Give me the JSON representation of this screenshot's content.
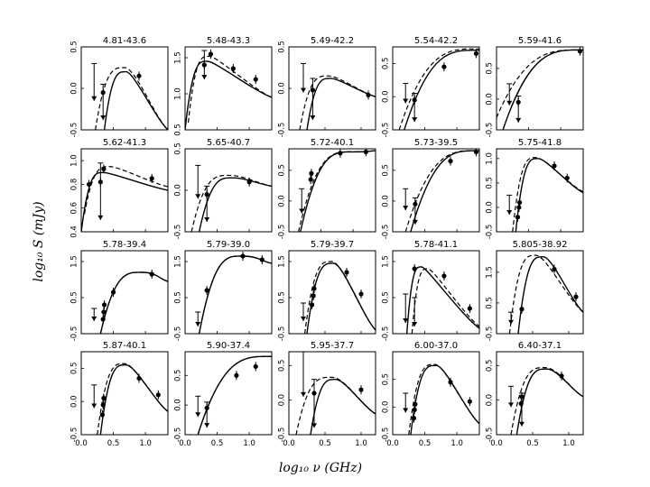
{
  "figure": {
    "xlabel": "log₁₀ ν (GHz)",
    "ylabel": "log₁₀ S (mJy)",
    "x_ticks": [
      "0.0",
      "0.5",
      "1.0"
    ]
  },
  "chart_data": [
    {
      "title": "4.81-43.6",
      "type": "line",
      "ylim": [
        -0.5,
        0.5
      ],
      "yticks": [
        "-0.5",
        "0.0",
        "0.5"
      ],
      "xlim": [
        0,
        1.35
      ],
      "solid": {
        "x0": 0.36,
        "y0": -0.5,
        "xp": 0.7,
        "yp": 0.2,
        "x1": 1.35,
        "y1": -0.5
      },
      "dashed": {
        "x0": 0.22,
        "y0": -0.5,
        "xp": 0.68,
        "yp": 0.25,
        "x1": 1.35,
        "y1": -0.5
      },
      "points": [
        [
          0.34,
          -0.05
        ],
        [
          0.9,
          0.15
        ]
      ],
      "limits": [
        [
          0.2,
          0.3,
          -0.15
        ],
        [
          0.34,
          0.05,
          -0.38
        ]
      ]
    },
    {
      "title": "5.48-43.3",
      "type": "line",
      "ylim": [
        0.5,
        1.65
      ],
      "yticks": [
        "0.5",
        "1.0",
        "1.5"
      ],
      "xlim": [
        0,
        1.35
      ],
      "solid": {
        "x0": 0.0,
        "y0": 0.5,
        "xp": 0.35,
        "yp": 1.45,
        "x1": 1.35,
        "y1": 0.95
      },
      "dashed": {
        "x0": 0.05,
        "y0": 0.6,
        "xp": 0.38,
        "yp": 1.52,
        "x1": 1.35,
        "y1": 0.95
      },
      "points": [
        [
          0.3,
          1.4
        ],
        [
          0.4,
          1.55
        ],
        [
          0.75,
          1.35
        ],
        [
          1.1,
          1.2
        ]
      ],
      "limits": [
        [
          0.3,
          1.6,
          1.2
        ]
      ]
    },
    {
      "title": "5.49-42.2",
      "type": "line",
      "ylim": [
        -0.5,
        0.5
      ],
      "yticks": [
        "-0.5",
        "0.0",
        "0.5"
      ],
      "xlim": [
        0,
        1.2
      ],
      "solid": {
        "x0": 0.25,
        "y0": -0.5,
        "xp": 0.58,
        "yp": 0.12,
        "x1": 1.2,
        "y1": -0.1
      },
      "dashed": {
        "x0": 0.15,
        "y0": -0.5,
        "xp": 0.55,
        "yp": 0.15,
        "x1": 1.2,
        "y1": -0.1
      },
      "points": [
        [
          0.33,
          -0.02
        ],
        [
          1.1,
          -0.08
        ]
      ],
      "limits": [
        [
          0.2,
          0.3,
          -0.05
        ],
        [
          0.33,
          0.12,
          -0.38
        ]
      ]
    },
    {
      "title": "5.54-42.2",
      "type": "line",
      "ylim": [
        -0.5,
        0.75
      ],
      "yticks": [
        "-0.5",
        "0.0",
        "0.5"
      ],
      "xlim": [
        0,
        1.35
      ],
      "solid": {
        "x0": 0.18,
        "y0": -0.5,
        "xp": 1.35,
        "yp": 0.7,
        "x1": 1.35,
        "y1": 0.7
      },
      "dashed": {
        "x0": 0.1,
        "y0": -0.5,
        "xp": 1.35,
        "yp": 0.72,
        "x1": 1.35,
        "y1": 0.72
      },
      "points": [
        [
          0.34,
          -0.05
        ],
        [
          0.8,
          0.45
        ],
        [
          1.3,
          0.65
        ]
      ],
      "limits": [
        [
          0.2,
          0.2,
          -0.1
        ],
        [
          0.34,
          0.05,
          -0.38
        ]
      ]
    },
    {
      "title": "5.59-41.6",
      "type": "line",
      "ylim": [
        -0.5,
        0.85
      ],
      "yticks": [
        "-0.5",
        "0.0",
        "0.5"
      ],
      "xlim": [
        0,
        1.35
      ],
      "solid": {
        "x0": 0.1,
        "y0": -0.5,
        "xp": 1.35,
        "yp": 0.8,
        "x1": 1.35,
        "y1": 0.8
      },
      "dashed": {
        "x0": 0.0,
        "y0": -0.3,
        "xp": 1.35,
        "yp": 0.8,
        "x1": 1.35,
        "y1": 0.8
      },
      "points": [
        [
          0.34,
          -0.05
        ],
        [
          1.3,
          0.78
        ]
      ],
      "limits": [
        [
          0.2,
          0.25,
          -0.1
        ],
        [
          0.34,
          0.05,
          -0.38
        ]
      ]
    },
    {
      "title": "5.62-41.3",
      "type": "line",
      "ylim": [
        0.4,
        1.1
      ],
      "yticks": [
        "0.4",
        "0.6",
        "0.8",
        "1.0"
      ],
      "xlim": [
        0,
        1.35
      ],
      "solid": {
        "x0": 0.0,
        "y0": 0.4,
        "xp": 0.35,
        "yp": 0.9,
        "x1": 1.35,
        "y1": 0.75
      },
      "dashed": {
        "x0": 0.05,
        "y0": 0.55,
        "xp": 0.45,
        "yp": 0.95,
        "x1": 1.35,
        "y1": 0.78
      },
      "points": [
        [
          0.12,
          0.8
        ],
        [
          0.3,
          0.82
        ],
        [
          0.35,
          0.93
        ],
        [
          1.1,
          0.85
        ]
      ],
      "limits": [
        [
          0.3,
          0.98,
          0.5
        ]
      ]
    },
    {
      "title": "5.65-40.7",
      "type": "line",
      "ylim": [
        -0.5,
        0.5
      ],
      "yticks": [
        "-0.5",
        "0.0",
        "0.5"
      ],
      "xlim": [
        0,
        1.35
      ],
      "solid": {
        "x0": 0.22,
        "y0": -0.5,
        "xp": 0.75,
        "yp": 0.15,
        "x1": 1.35,
        "y1": 0.05
      },
      "dashed": {
        "x0": 0.1,
        "y0": -0.5,
        "xp": 0.7,
        "yp": 0.18,
        "x1": 1.35,
        "y1": 0.05
      },
      "points": [
        [
          0.34,
          -0.05
        ],
        [
          1.0,
          0.1
        ]
      ],
      "limits": [
        [
          0.2,
          0.3,
          -0.1
        ],
        [
          0.34,
          0.05,
          -0.38
        ]
      ]
    },
    {
      "title": "5.72-40.1",
      "type": "line",
      "ylim": [
        -0.5,
        0.85
      ],
      "yticks": [
        "-0.5",
        "0.0",
        "0.5"
      ],
      "xlim": [
        0,
        1.35
      ],
      "solid": {
        "x0": 0.18,
        "y0": -0.5,
        "xp": 1.0,
        "yp": 0.8,
        "x1": 1.35,
        "y1": 0.82
      },
      "dashed": {
        "x0": 0.15,
        "y0": -0.5,
        "xp": 1.0,
        "yp": 0.8,
        "x1": 1.35,
        "y1": 0.82
      },
      "points": [
        [
          0.34,
          0.35
        ],
        [
          0.35,
          0.45
        ],
        [
          0.8,
          0.78
        ],
        [
          1.2,
          0.8
        ]
      ],
      "limits": [
        [
          0.2,
          0.2,
          -0.2
        ]
      ]
    },
    {
      "title": "5.73-39.5",
      "type": "line",
      "ylim": [
        -0.5,
        0.85
      ],
      "yticks": [
        "-0.5",
        "0.0",
        "0.5"
      ],
      "xlim": [
        0,
        1.35
      ],
      "solid": {
        "x0": 0.28,
        "y0": -0.5,
        "xp": 1.35,
        "yp": 0.82,
        "x1": 1.35,
        "y1": 0.82
      },
      "dashed": {
        "x0": 0.2,
        "y0": -0.5,
        "xp": 1.35,
        "yp": 0.82,
        "x1": 1.35,
        "y1": 0.82
      },
      "points": [
        [
          0.35,
          -0.05
        ],
        [
          0.9,
          0.65
        ],
        [
          1.3,
          0.8
        ]
      ],
      "limits": [
        [
          0.2,
          0.2,
          -0.15
        ],
        [
          0.35,
          0.05,
          -0.38
        ]
      ]
    },
    {
      "title": "5.75-41.8",
      "type": "line",
      "ylim": [
        -0.5,
        1.2
      ],
      "yticks": [
        "-0.5",
        "0.0",
        "0.5",
        "1.0"
      ],
      "xlim": [
        0,
        1.35
      ],
      "solid": {
        "x0": 0.3,
        "y0": -0.5,
        "xp": 0.65,
        "yp": 1.0,
        "x1": 1.35,
        "y1": 0.3
      },
      "dashed": {
        "x0": 0.25,
        "y0": -0.5,
        "xp": 0.62,
        "yp": 1.02,
        "x1": 1.35,
        "y1": 0.32
      },
      "points": [
        [
          0.33,
          -0.2
        ],
        [
          0.35,
          0.0
        ],
        [
          0.36,
          0.1
        ],
        [
          0.9,
          0.85
        ],
        [
          1.1,
          0.6
        ]
      ],
      "limits": [
        [
          0.2,
          0.25,
          -0.15
        ]
      ]
    },
    {
      "title": "5.78-39.4",
      "type": "line",
      "ylim": [
        -0.5,
        1.8
      ],
      "yticks": [
        "-0.5",
        "0.5",
        "1.5"
      ],
      "xlim": [
        0,
        1.35
      ],
      "solid": {
        "x0": 0.3,
        "y0": -0.5,
        "xp": 0.95,
        "yp": 1.2,
        "x1": 1.35,
        "y1": 0.95
      },
      "dashed": {
        "x0": 0.3,
        "y0": -0.5,
        "xp": 0.95,
        "yp": 1.2,
        "x1": 1.35,
        "y1": 0.95
      },
      "points": [
        [
          0.34,
          -0.1
        ],
        [
          0.35,
          0.1
        ],
        [
          0.36,
          0.3
        ],
        [
          0.5,
          0.65
        ],
        [
          1.1,
          1.15
        ]
      ],
      "limits": [
        [
          0.2,
          0.2,
          -0.15
        ]
      ]
    },
    {
      "title": "5.79-39.0",
      "type": "line",
      "ylim": [
        -0.5,
        1.8
      ],
      "yticks": [
        "-0.5",
        "0.5",
        "1.5"
      ],
      "xlim": [
        0,
        1.35
      ],
      "solid": {
        "x0": 0.22,
        "y0": -0.5,
        "xp": 0.9,
        "yp": 1.65,
        "x1": 1.35,
        "y1": 1.45
      },
      "dashed": {
        "x0": 0.22,
        "y0": -0.5,
        "xp": 0.9,
        "yp": 1.65,
        "x1": 1.35,
        "y1": 1.45
      },
      "points": [
        [
          0.34,
          0.7
        ],
        [
          0.9,
          1.65
        ],
        [
          1.2,
          1.55
        ]
      ],
      "limits": [
        [
          0.2,
          0.1,
          -0.3
        ]
      ]
    },
    {
      "title": "5.79-39.7",
      "type": "line",
      "ylim": [
        -0.5,
        1.8
      ],
      "yticks": [
        "-0.5",
        "0.5",
        "1.5"
      ],
      "xlim": [
        0,
        1.2
      ],
      "solid": {
        "x0": 0.25,
        "y0": -0.5,
        "xp": 0.62,
        "yp": 1.45,
        "x1": 1.2,
        "y1": -0.4
      },
      "dashed": {
        "x0": 0.22,
        "y0": -0.5,
        "xp": 0.6,
        "yp": 1.5,
        "x1": 1.2,
        "y1": -0.4
      },
      "points": [
        [
          0.32,
          0.3
        ],
        [
          0.34,
          0.55
        ],
        [
          0.35,
          0.75
        ],
        [
          0.8,
          1.2
        ],
        [
          1.0,
          0.6
        ]
      ],
      "limits": [
        [
          0.2,
          0.35,
          -0.15
        ]
      ]
    },
    {
      "title": "5.78-41.1",
      "type": "line",
      "ylim": [
        -0.5,
        1.8
      ],
      "yticks": [
        "-0.5",
        "0.5",
        "1.5"
      ],
      "xlim": [
        0,
        1.35
      ],
      "solid": {
        "x0": 0.22,
        "y0": -0.5,
        "xp": 0.45,
        "yp": 1.35,
        "x1": 1.35,
        "y1": -0.35
      },
      "dashed": {
        "x0": 0.3,
        "y0": -0.5,
        "xp": 0.55,
        "yp": 1.3,
        "x1": 1.35,
        "y1": -0.3
      },
      "points": [
        [
          0.34,
          1.3
        ],
        [
          0.8,
          1.1
        ],
        [
          1.2,
          0.2
        ]
      ],
      "limits": [
        [
          0.2,
          0.6,
          -0.2
        ],
        [
          0.34,
          0.5,
          -0.3
        ]
      ]
    },
    {
      "title": "5.805-38.92",
      "type": "line",
      "ylim": [
        -0.5,
        2.2
      ],
      "yticks": [
        "-0.5",
        "0.5",
        "1.5"
      ],
      "xlim": [
        0,
        1.2
      ],
      "solid": {
        "x0": 0.3,
        "y0": -0.5,
        "xp": 0.65,
        "yp": 2.0,
        "x1": 1.2,
        "y1": 0.2
      },
      "dashed": {
        "x0": 0.18,
        "y0": -0.5,
        "xp": 0.55,
        "yp": 2.05,
        "x1": 1.2,
        "y1": 0.2
      },
      "points": [
        [
          0.35,
          0.3
        ],
        [
          0.8,
          1.6
        ],
        [
          1.1,
          0.7
        ]
      ],
      "limits": [
        [
          0.2,
          0.2,
          -0.2
        ]
      ]
    },
    {
      "title": "5.87-40.1",
      "type": "line",
      "ylim": [
        -0.5,
        0.75
      ],
      "yticks": [
        "-0.5",
        "0.0",
        "0.5"
      ],
      "xlim": [
        0,
        1.35
      ],
      "solid": {
        "x0": 0.3,
        "y0": -0.5,
        "xp": 0.7,
        "yp": 0.55,
        "x1": 1.35,
        "y1": -0.15
      },
      "dashed": {
        "x0": 0.25,
        "y0": -0.5,
        "xp": 0.68,
        "yp": 0.57,
        "x1": 1.35,
        "y1": -0.15
      },
      "points": [
        [
          0.33,
          -0.2
        ],
        [
          0.34,
          -0.05
        ],
        [
          0.35,
          0.05
        ],
        [
          0.9,
          0.35
        ],
        [
          1.2,
          0.1
        ]
      ],
      "limits": [
        [
          0.2,
          0.25,
          -0.1
        ]
      ]
    },
    {
      "title": "5.90-37.4",
      "type": "line",
      "ylim": [
        -0.5,
        0.9
      ],
      "yticks": [
        "-0.5",
        "0.0",
        "0.5"
      ],
      "xlim": [
        0,
        1.35
      ],
      "solid": {
        "x0": 0.2,
        "y0": -0.5,
        "xp": 1.35,
        "yp": 0.82,
        "x1": 1.35,
        "y1": 0.82
      },
      "dashed": {
        "x0": 0.2,
        "y0": -0.5,
        "xp": 1.35,
        "yp": 0.82,
        "x1": 1.35,
        "y1": 0.82
      },
      "points": [
        [
          0.34,
          -0.05
        ],
        [
          0.8,
          0.5
        ],
        [
          1.1,
          0.65
        ]
      ],
      "limits": [
        [
          0.2,
          0.15,
          -0.2
        ],
        [
          0.34,
          0.05,
          -0.38
        ]
      ]
    },
    {
      "title": "5.95-37.7",
      "type": "line",
      "ylim": [
        -0.5,
        0.7
      ],
      "yticks": [
        "-0.5",
        "0.0",
        "0.5"
      ],
      "xlim": [
        0,
        1.2
      ],
      "solid": {
        "x0": 0.3,
        "y0": -0.5,
        "xp": 0.65,
        "yp": 0.3,
        "x1": 1.2,
        "y1": -0.2
      },
      "dashed": {
        "x0": 0.1,
        "y0": -0.5,
        "xp": 0.6,
        "yp": 0.33,
        "x1": 1.2,
        "y1": -0.2
      },
      "points": [
        [
          0.35,
          0.1
        ],
        [
          1.0,
          0.15
        ]
      ],
      "limits": [
        [
          0.2,
          0.7,
          0.05
        ],
        [
          0.35,
          0.3,
          -0.4
        ]
      ]
    },
    {
      "title": "6.00-37.0",
      "type": "line",
      "ylim": [
        -0.5,
        1.0
      ],
      "yticks": [
        "-0.5",
        "0.0",
        "0.5"
      ],
      "xlim": [
        0,
        1.35
      ],
      "solid": {
        "x0": 0.28,
        "y0": -0.5,
        "xp": 0.68,
        "yp": 0.75,
        "x1": 1.35,
        "y1": -0.3
      },
      "dashed": {
        "x0": 0.25,
        "y0": -0.5,
        "xp": 0.66,
        "yp": 0.77,
        "x1": 1.35,
        "y1": -0.3
      },
      "points": [
        [
          0.33,
          -0.2
        ],
        [
          0.34,
          -0.05
        ],
        [
          0.35,
          0.05
        ],
        [
          0.9,
          0.45
        ],
        [
          1.2,
          0.1
        ]
      ],
      "limits": [
        [
          0.2,
          0.25,
          -0.1
        ]
      ]
    },
    {
      "title": "6.40-37.1",
      "type": "line",
      "ylim": [
        -0.5,
        0.7
      ],
      "yticks": [
        "-0.5",
        "0.0",
        "0.5"
      ],
      "xlim": [
        0,
        1.2
      ],
      "solid": {
        "x0": 0.28,
        "y0": -0.5,
        "xp": 0.7,
        "yp": 0.45,
        "x1": 1.2,
        "y1": 0.05
      },
      "dashed": {
        "x0": 0.2,
        "y0": -0.5,
        "xp": 0.68,
        "yp": 0.47,
        "x1": 1.2,
        "y1": 0.05
      },
      "points": [
        [
          0.34,
          -0.05
        ],
        [
          0.35,
          0.05
        ],
        [
          0.9,
          0.35
        ]
      ],
      "limits": [
        [
          0.2,
          0.2,
          -0.1
        ],
        [
          0.35,
          0.1,
          -0.38
        ]
      ]
    }
  ]
}
